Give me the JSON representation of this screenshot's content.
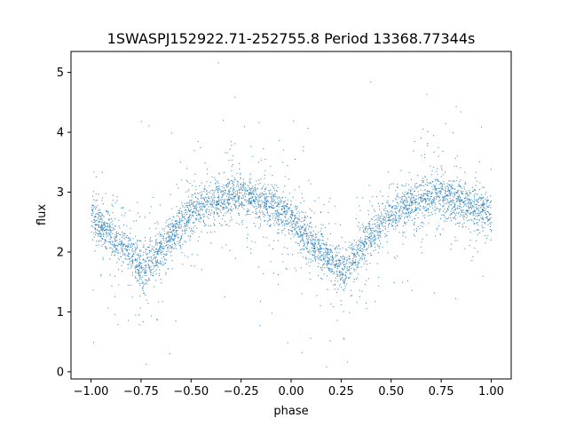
{
  "chart_data": {
    "type": "scatter",
    "title": "1SWASPJ152922.71-252755.8 Period 13368.77344s",
    "xlabel": "phase",
    "ylabel": "flux",
    "xlim": [
      -1.1,
      1.1
    ],
    "ylim": [
      -0.12,
      5.35
    ],
    "xticks": [
      -1.0,
      -0.75,
      -0.5,
      -0.25,
      0.0,
      0.25,
      0.5,
      0.75,
      1.0
    ],
    "xtick_labels": [
      "−1.00",
      "−0.75",
      "−0.50",
      "−0.25",
      "0.00",
      "0.25",
      "0.50",
      "0.75",
      "1.00"
    ],
    "yticks": [
      0,
      1,
      2,
      3,
      4,
      5
    ],
    "ytick_labels": [
      "0",
      "1",
      "2",
      "3",
      "4",
      "5"
    ],
    "grid": false,
    "point_color": "#1f77b4",
    "curve_profile": {
      "x": [
        -1.0,
        -0.9,
        -0.8,
        -0.75,
        -0.7,
        -0.6,
        -0.5,
        -0.4,
        -0.3,
        -0.25,
        -0.2,
        -0.1,
        0.0,
        0.1,
        0.2,
        0.25,
        0.3,
        0.4,
        0.5,
        0.6,
        0.7,
        0.75,
        0.8,
        0.9,
        1.0
      ],
      "y": [
        2.6,
        2.3,
        1.95,
        1.75,
        1.85,
        2.3,
        2.65,
        2.85,
        2.95,
        2.95,
        2.9,
        2.8,
        2.55,
        2.15,
        1.85,
        1.72,
        1.85,
        2.3,
        2.6,
        2.8,
        2.92,
        2.95,
        2.9,
        2.8,
        2.65
      ]
    }
  }
}
